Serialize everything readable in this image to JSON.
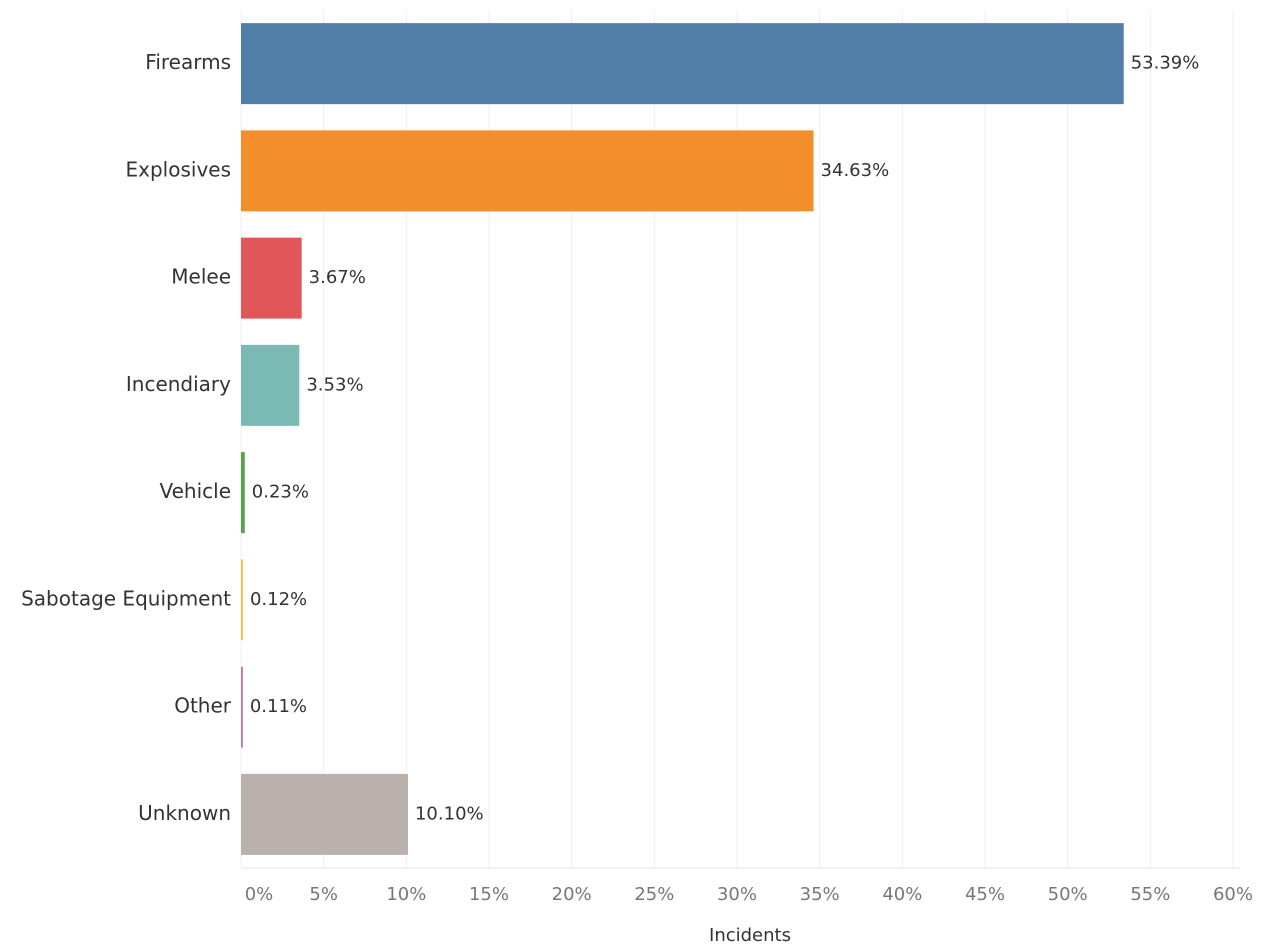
{
  "chart_data": {
    "type": "bar",
    "orientation": "horizontal",
    "categories": [
      "Firearms",
      "Explosives",
      "Melee",
      "Incendiary",
      "Vehicle",
      "Sabotage Equipment",
      "Other",
      "Unknown"
    ],
    "values": [
      53.39,
      34.63,
      3.67,
      3.53,
      0.23,
      0.12,
      0.11,
      10.1
    ],
    "value_labels": [
      "53.39%",
      "34.63%",
      "3.67%",
      "3.53%",
      "0.23%",
      "0.12%",
      "0.11%",
      "10.10%"
    ],
    "colors": [
      "#527eaa",
      "#f28e2b",
      "#e15759",
      "#7bbab4",
      "#59a14f",
      "#edc948",
      "#b07aa1",
      "#bab0ac"
    ],
    "xlabel": "Incidents",
    "xlim": [
      0,
      60
    ],
    "xticks": [
      {
        "value": 0,
        "label": "0%"
      },
      {
        "value": 5,
        "label": "5%"
      },
      {
        "value": 10,
        "label": "10%"
      },
      {
        "value": 15,
        "label": "15%"
      },
      {
        "value": 20,
        "label": "20%"
      },
      {
        "value": 25,
        "label": "25%"
      },
      {
        "value": 30,
        "label": "30%"
      },
      {
        "value": 35,
        "label": "35%"
      },
      {
        "value": 40,
        "label": "40%"
      },
      {
        "value": 45,
        "label": "45%"
      },
      {
        "value": 50,
        "label": "50%"
      },
      {
        "value": 55,
        "label": "55%"
      },
      {
        "value": 60,
        "label": "60%"
      }
    ],
    "grid": true
  }
}
